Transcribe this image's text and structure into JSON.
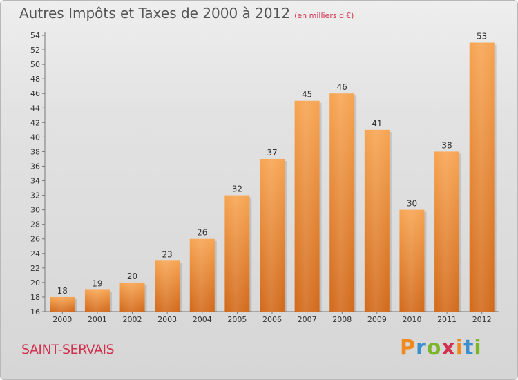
{
  "chart_data": {
    "type": "bar",
    "title": "Autres Impôts et Taxes de 2000 à 2012",
    "unit_note": "(en milliers d'€)",
    "categories": [
      "2000",
      "2001",
      "2002",
      "2003",
      "2004",
      "2005",
      "2006",
      "2007",
      "2008",
      "2009",
      "2010",
      "2011",
      "2012"
    ],
    "values": [
      18,
      19,
      20,
      23,
      26,
      32,
      37,
      45,
      46,
      41,
      30,
      38,
      53
    ],
    "ylim": [
      16,
      54
    ],
    "ytick_step": 2,
    "grid": false,
    "data_labels": true,
    "bar_color": "#f0913a"
  },
  "footer": {
    "location": "SAINT-SERVAIS",
    "brand": "Proxiti"
  },
  "colors": {
    "accent": "#d0314f",
    "brand_letters": [
      "#f08a1e",
      "#3a8fcf",
      "#7bb52a",
      "#d0314f",
      "#f08a1e",
      "#3a8fcf",
      "#7bb52a"
    ]
  }
}
